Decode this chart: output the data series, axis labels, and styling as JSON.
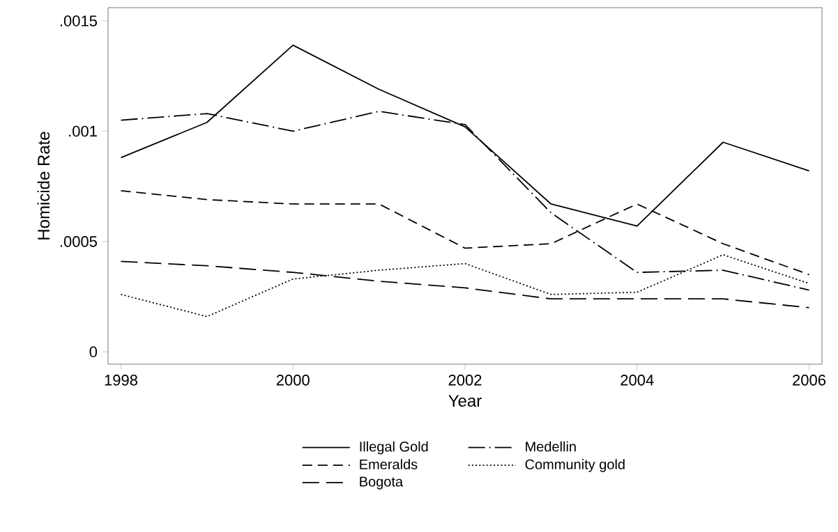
{
  "chart_data": {
    "type": "line",
    "xlabel": "Year",
    "ylabel": "Homicide Rate",
    "x": [
      1998,
      1999,
      2000,
      2001,
      2002,
      2003,
      2004,
      2005,
      2006
    ],
    "xlim": [
      1997.85,
      2006.15
    ],
    "xticks": [
      1998,
      2000,
      2002,
      2004,
      2006
    ],
    "ylim": [
      -5.6e-05,
      0.00156
    ],
    "yticks": [
      0,
      {
        "value": 0.0005,
        "label": ".0005"
      },
      {
        "value": 0.001,
        "label": ".001"
      },
      {
        "value": 0.0015,
        "label": ".0015"
      }
    ],
    "grid": false,
    "legend": "bottom",
    "series": [
      {
        "name": "Illegal Gold",
        "color": "#000000",
        "line_style": "solid",
        "values": [
          0.00088,
          0.00104,
          0.00139,
          0.00119,
          0.00102,
          0.00067,
          0.00057,
          0.00095,
          0.00082
        ]
      },
      {
        "name": "Medellin",
        "color": "#000000",
        "line_style": "dashdot",
        "values": [
          0.00105,
          0.00108,
          0.001,
          0.00109,
          0.00103,
          0.00063,
          0.00036,
          0.00037,
          0.00028
        ]
      },
      {
        "name": "Emeralds",
        "color": "#000000",
        "line_style": "dashed",
        "values": [
          0.00073,
          0.00069,
          0.00067,
          0.00067,
          0.00047,
          0.00049,
          0.00067,
          0.00049,
          0.00035
        ]
      },
      {
        "name": "Community gold",
        "color": "#000000",
        "line_style": "dotted",
        "values": [
          0.00026,
          0.00016,
          0.00033,
          0.00037,
          0.0004,
          0.00026,
          0.00027,
          0.00044,
          0.00031
        ]
      },
      {
        "name": "Bogota",
        "color": "#000000",
        "line_style": "longdashed",
        "values": [
          0.00041,
          0.00039,
          0.00036,
          0.00032,
          0.00029,
          0.00024,
          0.00024,
          0.00024,
          0.0002
        ]
      }
    ]
  }
}
